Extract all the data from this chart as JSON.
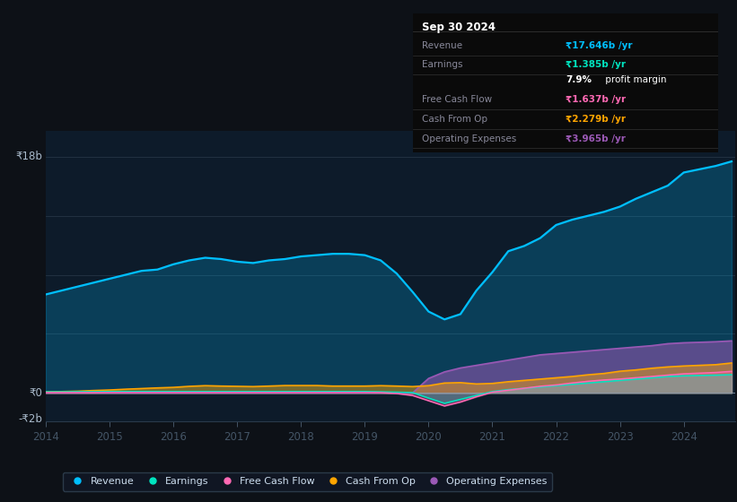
{
  "bg_color": "#0d1117",
  "plot_bg_color": "#0d1b2a",
  "grid_color": "#253545",
  "colors": {
    "revenue": "#00bfff",
    "earnings": "#00e5c0",
    "free_cash_flow": "#ff69b4",
    "cash_from_op": "#ffa500",
    "operating_expenses": "#9b59b6"
  },
  "years": [
    2014,
    2014.25,
    2014.5,
    2014.75,
    2015,
    2015.25,
    2015.5,
    2015.75,
    2016,
    2016.25,
    2016.5,
    2016.75,
    2017,
    2017.25,
    2017.5,
    2017.75,
    2018,
    2018.25,
    2018.5,
    2018.75,
    2019,
    2019.25,
    2019.5,
    2019.75,
    2020,
    2020.25,
    2020.5,
    2020.75,
    2021,
    2021.25,
    2021.5,
    2021.75,
    2022,
    2022.25,
    2022.5,
    2022.75,
    2023,
    2023.25,
    2023.5,
    2023.75,
    2024,
    2024.5,
    2024.75
  ],
  "revenue": [
    7.5,
    7.8,
    8.1,
    8.4,
    8.7,
    9.0,
    9.3,
    9.4,
    9.8,
    10.1,
    10.3,
    10.2,
    10.0,
    9.9,
    10.1,
    10.2,
    10.4,
    10.5,
    10.6,
    10.6,
    10.5,
    10.1,
    9.1,
    7.7,
    6.2,
    5.6,
    6.0,
    7.8,
    9.2,
    10.8,
    11.2,
    11.8,
    12.8,
    13.2,
    13.5,
    13.8,
    14.2,
    14.8,
    15.3,
    15.8,
    16.8,
    17.3,
    17.646
  ],
  "earnings": [
    0.08,
    0.08,
    0.09,
    0.09,
    0.1,
    0.1,
    0.1,
    0.1,
    0.1,
    0.1,
    0.1,
    0.1,
    0.1,
    0.1,
    0.1,
    0.1,
    0.1,
    0.1,
    0.1,
    0.1,
    0.1,
    0.08,
    0.05,
    0.02,
    -0.4,
    -0.8,
    -0.5,
    -0.2,
    0.1,
    0.25,
    0.35,
    0.45,
    0.55,
    0.65,
    0.75,
    0.85,
    0.95,
    1.05,
    1.15,
    1.25,
    1.3,
    1.35,
    1.385
  ],
  "free_cash_flow": [
    0.02,
    0.02,
    0.02,
    0.02,
    0.03,
    0.03,
    0.03,
    0.03,
    0.03,
    0.03,
    0.03,
    0.03,
    0.03,
    0.03,
    0.03,
    0.03,
    0.03,
    0.03,
    0.03,
    0.03,
    0.03,
    0.02,
    -0.05,
    -0.2,
    -0.6,
    -1.0,
    -0.7,
    -0.3,
    0.05,
    0.2,
    0.35,
    0.5,
    0.6,
    0.75,
    0.88,
    0.98,
    1.05,
    1.15,
    1.25,
    1.35,
    1.45,
    1.55,
    1.637
  ],
  "cash_from_op": [
    0.08,
    0.1,
    0.13,
    0.18,
    0.22,
    0.28,
    0.33,
    0.38,
    0.42,
    0.5,
    0.55,
    0.52,
    0.5,
    0.48,
    0.52,
    0.56,
    0.56,
    0.56,
    0.52,
    0.52,
    0.52,
    0.55,
    0.52,
    0.48,
    0.55,
    0.75,
    0.78,
    0.68,
    0.72,
    0.85,
    0.95,
    1.05,
    1.15,
    1.25,
    1.38,
    1.48,
    1.65,
    1.75,
    1.88,
    1.98,
    2.05,
    2.15,
    2.279
  ],
  "operating_expenses": [
    0.0,
    0.0,
    0.0,
    0.0,
    0.0,
    0.0,
    0.0,
    0.0,
    0.0,
    0.0,
    0.0,
    0.0,
    0.0,
    0.0,
    0.0,
    0.0,
    0.0,
    0.0,
    0.0,
    0.0,
    0.0,
    0.0,
    0.0,
    0.0,
    1.1,
    1.6,
    1.9,
    2.1,
    2.3,
    2.5,
    2.7,
    2.9,
    3.0,
    3.1,
    3.2,
    3.3,
    3.4,
    3.5,
    3.6,
    3.75,
    3.82,
    3.9,
    3.965
  ],
  "ylim": [
    -2.2,
    20.0
  ],
  "xlabel_years": [
    2014,
    2015,
    2016,
    2017,
    2018,
    2019,
    2020,
    2021,
    2022,
    2023,
    2024
  ],
  "ytick_positions": [
    18,
    0,
    -2
  ],
  "ytick_labels": [
    "₹18b",
    "₹0",
    "-₹2b"
  ],
  "info_box": {
    "title": "Sep 30 2024",
    "rows": [
      {
        "label": "Revenue",
        "value": "₹17.646b /yr",
        "val_color": "#00bfff",
        "bold_val": true,
        "sub": null
      },
      {
        "label": "Earnings",
        "value": "₹1.385b /yr",
        "val_color": "#00e5c0",
        "bold_val": true,
        "sub": "7.9% profit margin"
      },
      {
        "label": "Free Cash Flow",
        "value": "₹1.637b /yr",
        "val_color": "#ff69b4",
        "bold_val": true,
        "sub": null
      },
      {
        "label": "Cash From Op",
        "value": "₹2.279b /yr",
        "val_color": "#ffa500",
        "bold_val": true,
        "sub": null
      },
      {
        "label": "Operating Expenses",
        "value": "₹3.965b /yr",
        "val_color": "#9b59b6",
        "bold_val": true,
        "sub": null
      }
    ]
  },
  "legend": [
    {
      "label": "Revenue",
      "color": "#00bfff"
    },
    {
      "label": "Earnings",
      "color": "#00e5c0"
    },
    {
      "label": "Free Cash Flow",
      "color": "#ff69b4"
    },
    {
      "label": "Cash From Op",
      "color": "#ffa500"
    },
    {
      "label": "Operating Expenses",
      "color": "#9b59b6"
    }
  ]
}
